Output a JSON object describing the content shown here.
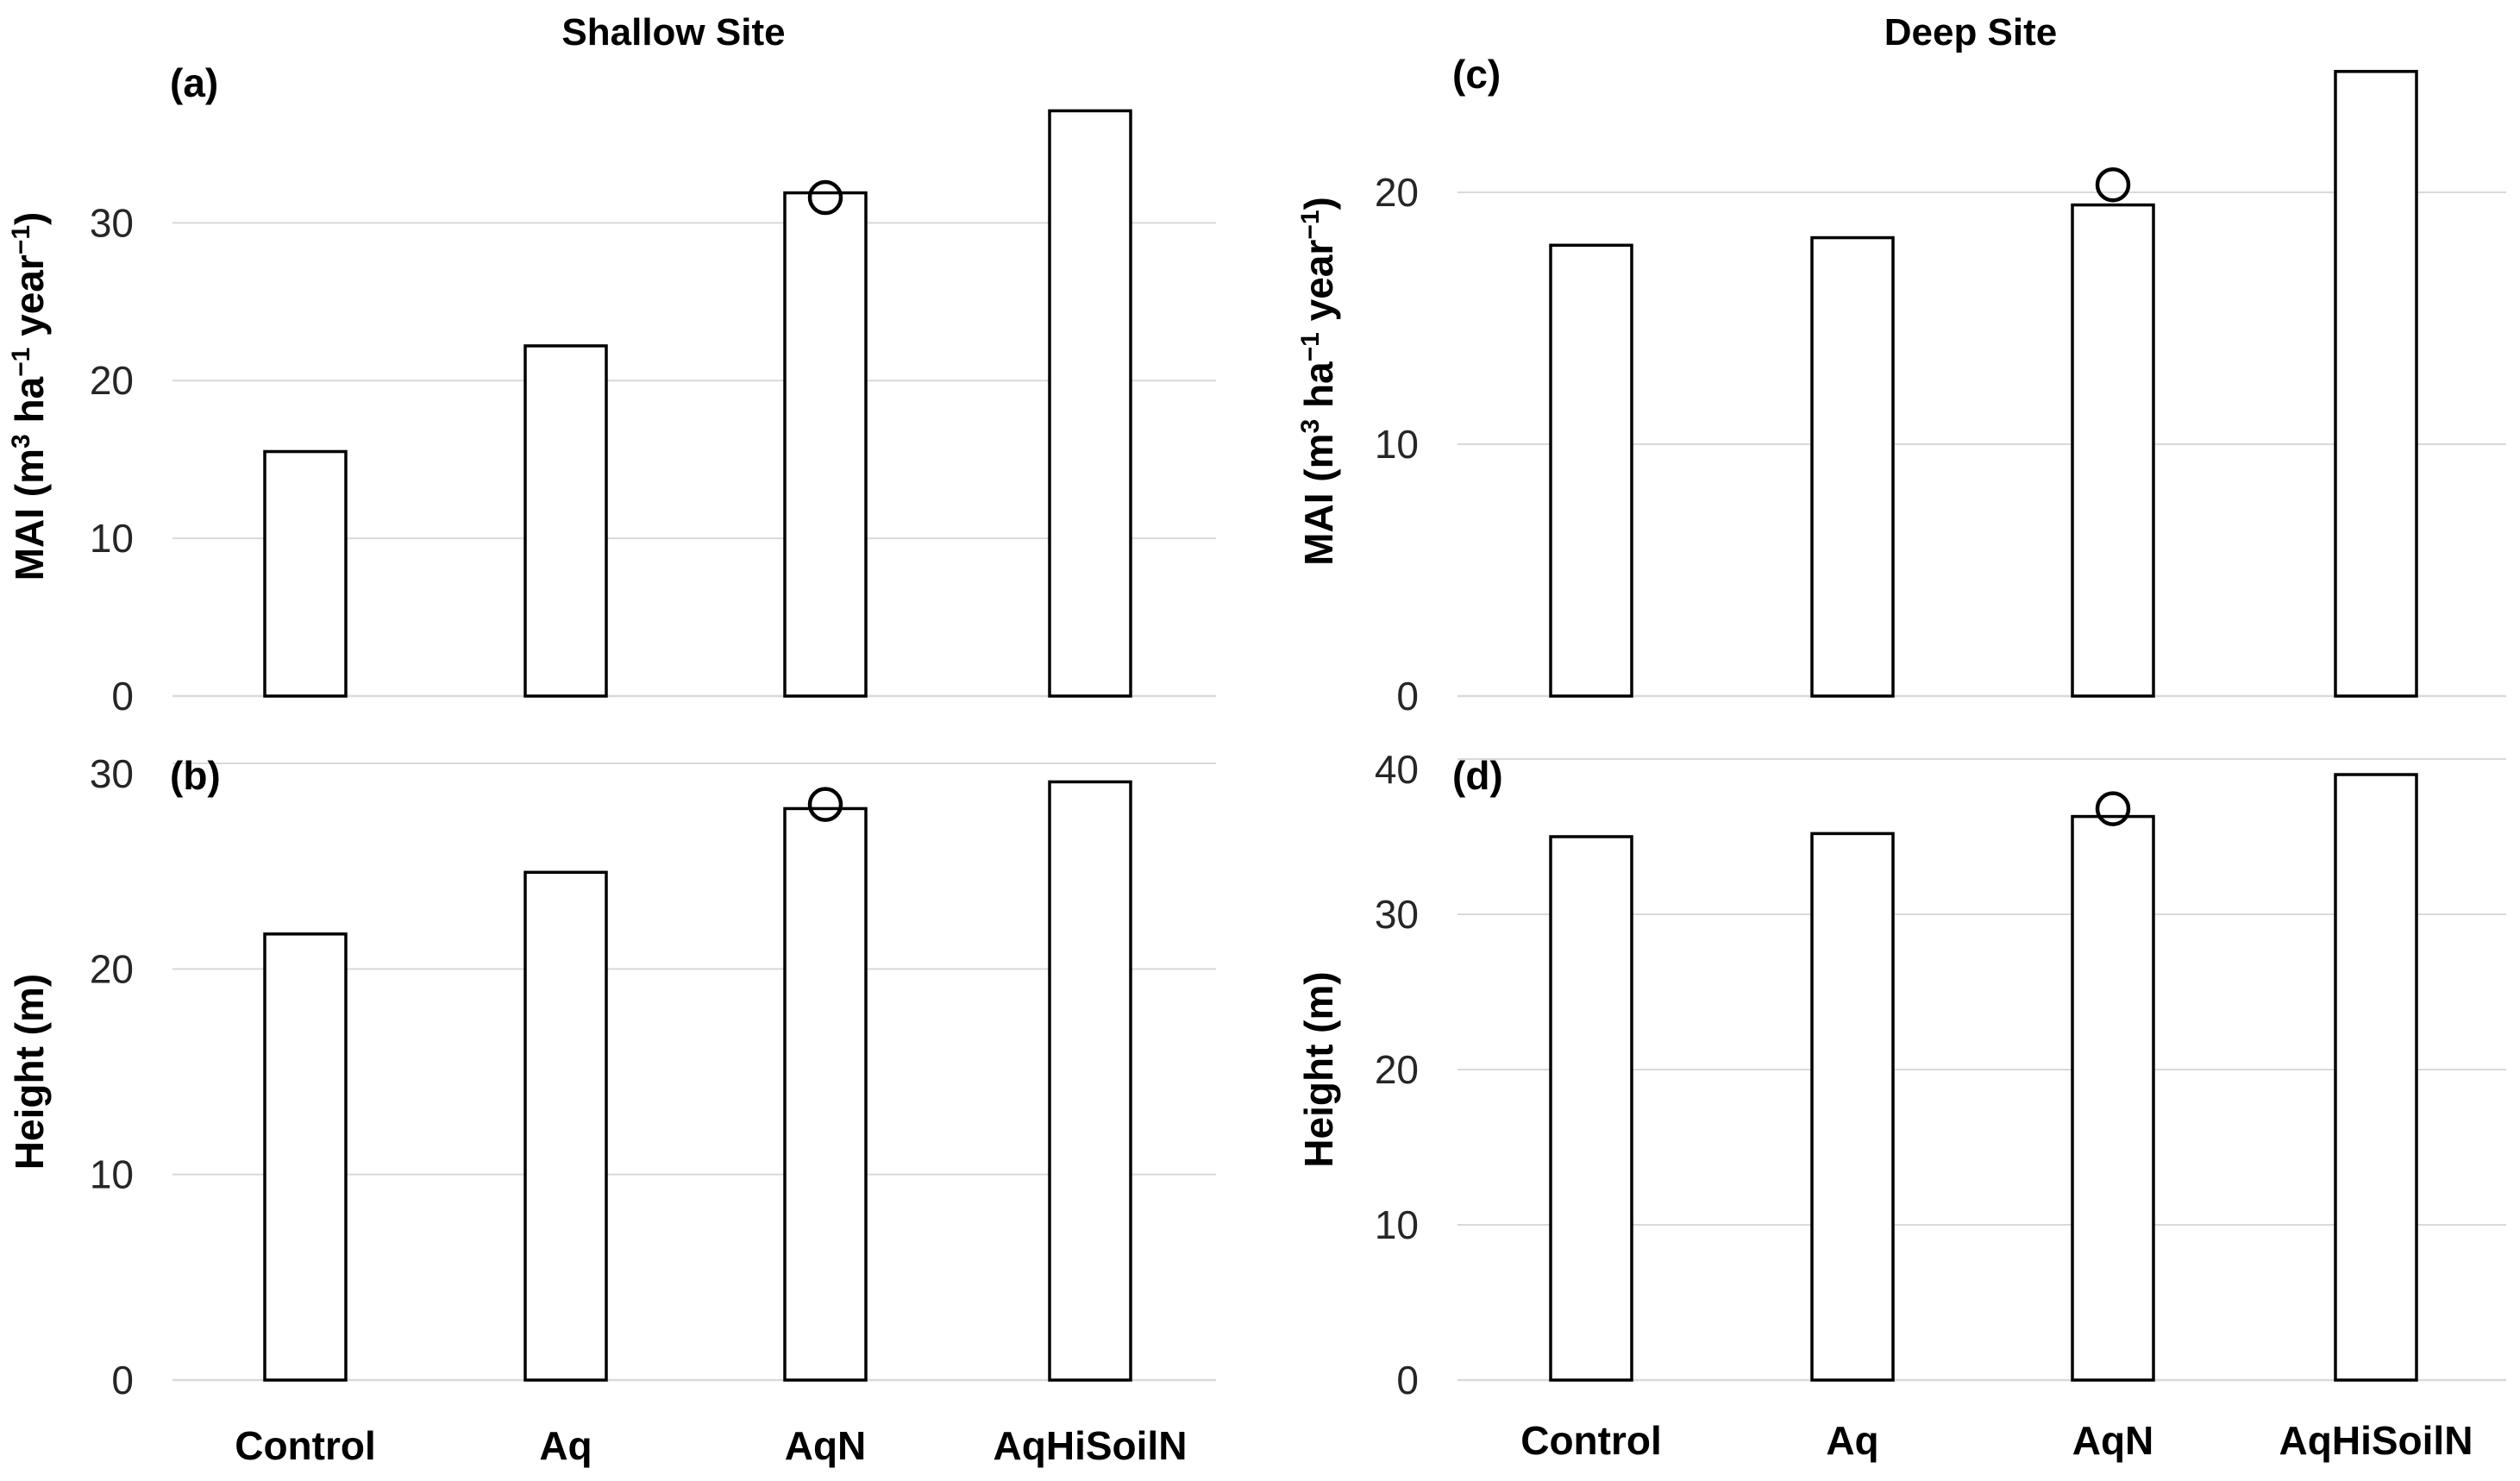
{
  "site_titles": [
    "Shallow  Site",
    "Deep Site"
  ],
  "chart_data": [
    {
      "panel": "(a)",
      "site": "Shallow  Site",
      "type": "bar",
      "categories": [
        "Control",
        "Aq",
        "AqN",
        "AqHiSoilN"
      ],
      "values": [
        15.5,
        22.2,
        31.9,
        37.1
      ],
      "markers": [
        {
          "category": "AqN",
          "value": 31.6,
          "shape": "open-circle"
        }
      ],
      "ylabel": "MAI (m3 ha-1 year-1)",
      "ylim": [
        0,
        38
      ],
      "yticks": [
        0,
        10,
        20,
        30
      ],
      "gridlines": true
    },
    {
      "panel": "(b)",
      "site": "Shallow  Site",
      "type": "bar",
      "categories": [
        "Control",
        "Aq",
        "AqN",
        "AqHiSoilN"
      ],
      "values": [
        21.7,
        24.7,
        27.8,
        29.1
      ],
      "markers": [
        {
          "category": "AqN",
          "value": 28.0,
          "shape": "open-circle"
        }
      ],
      "ylabel": "Height (m)",
      "ylim": [
        0,
        30
      ],
      "yticks": [
        0,
        10,
        20,
        30
      ],
      "gridlines": true
    },
    {
      "panel": "(c)",
      "site": "Deep Site",
      "type": "bar",
      "categories": [
        "Control",
        "Aq",
        "AqN",
        "AqHiSoilN"
      ],
      "values": [
        17.9,
        18.2,
        19.5,
        24.8
      ],
      "markers": [
        {
          "category": "AqN",
          "value": 20.3,
          "shape": "open-circle"
        }
      ],
      "ylabel": "MAI (m3 ha-1 year-1)",
      "ylim": [
        0,
        25
      ],
      "yticks": [
        0,
        10,
        20
      ],
      "gridlines": true
    },
    {
      "panel": "(d)",
      "site": "Deep Site",
      "type": "bar",
      "categories": [
        "Control",
        "Aq",
        "AqN",
        "AqHiSoilN"
      ],
      "values": [
        35.0,
        35.2,
        36.3,
        39.0
      ],
      "markers": [
        {
          "category": "AqN",
          "value": 36.8,
          "shape": "open-circle"
        }
      ],
      "ylabel": "Height (m)",
      "ylim": [
        0,
        40
      ],
      "yticks": [
        0,
        10,
        20,
        30,
        40
      ],
      "gridlines": true
    }
  ]
}
